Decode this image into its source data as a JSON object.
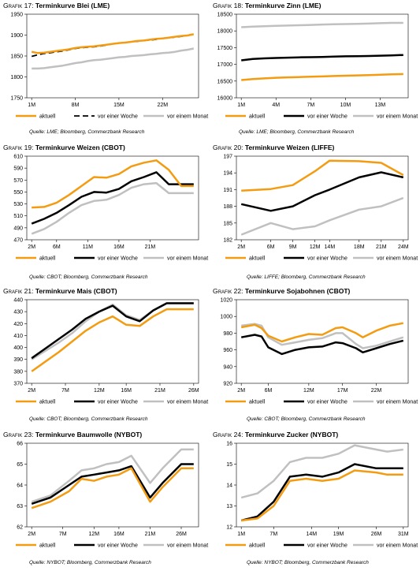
{
  "panels": [
    {
      "label": "Grafik 17:",
      "title": "Terminkurve Blei (LME)",
      "source": "Quelle: LME; Bloomberg, Commerzbank Research",
      "chart_data": {
        "type": "line",
        "x": [
          1,
          2,
          3,
          4,
          5,
          6,
          7,
          8,
          9,
          10,
          11,
          12,
          13,
          14,
          15,
          16,
          17,
          18,
          19,
          20,
          21,
          22,
          23,
          24,
          25,
          26,
          27
        ],
        "xticks": [
          1,
          8,
          15,
          22
        ],
        "xticklabels": [
          "1M",
          "8M",
          "15M",
          "22M"
        ],
        "ylim": [
          1750,
          1950
        ],
        "yticks": [
          1750,
          1800,
          1850,
          1900,
          1950
        ],
        "series": [
          {
            "name": "aktuell",
            "color": "#f39c12",
            "width": 2.5,
            "dash": "",
            "values": [
              1860,
              1857,
              1858,
              1860,
              1862,
              1864,
              1866,
              1869,
              1871,
              1872,
              1873,
              1875,
              1877,
              1879,
              1881,
              1882,
              1884,
              1886,
              1887,
              1889,
              1891,
              1892,
              1894,
              1896,
              1898,
              1899,
              1902
            ]
          },
          {
            "name": "vor einer Woche",
            "color": "#000000",
            "width": 1.8,
            "dash": "7,4",
            "values": [
              1849,
              1853,
              1856,
              1858,
              1860,
              1862,
              1865,
              1868,
              1870,
              1871,
              1872,
              1874,
              1876,
              1879,
              1881,
              1882,
              1884,
              1885,
              1887,
              1888,
              1890,
              1892,
              1894,
              1895,
              1897,
              1899,
              1903
            ]
          },
          {
            "name": "vor einem Monat",
            "color": "#c0c0c0",
            "width": 2.5,
            "dash": "",
            "values": [
              1820,
              1820,
              1821,
              1823,
              1825,
              1827,
              1830,
              1833,
              1835,
              1838,
              1840,
              1841,
              1843,
              1845,
              1847,
              1848,
              1850,
              1851,
              1852,
              1854,
              1855,
              1857,
              1858,
              1860,
              1863,
              1865,
              1868
            ]
          }
        ]
      }
    },
    {
      "label": "Grafik 18:",
      "title": "Terminkurve Zinn (LME)",
      "source": "Quelle: LME; Bloomberg, Commerzbank Research",
      "chart_data": {
        "type": "line",
        "x": [
          1,
          2,
          3,
          4,
          5,
          6,
          7,
          8,
          9,
          10,
          11,
          12,
          13,
          14,
          15
        ],
        "xticks": [
          1,
          4,
          7,
          10,
          13
        ],
        "xticklabels": [
          "1M",
          "4M",
          "7M",
          "10M",
          "13M"
        ],
        "ylim": [
          16000,
          18500
        ],
        "yticks": [
          16000,
          16500,
          17000,
          17500,
          18000,
          18500
        ],
        "series": [
          {
            "name": "aktuell",
            "color": "#f39c12",
            "width": 2.5,
            "dash": "",
            "values": [
              16530,
              16560,
              16580,
              16600,
              16610,
              16620,
              16630,
              16640,
              16650,
              16660,
              16670,
              16680,
              16690,
              16700,
              16710
            ]
          },
          {
            "name": "vor einer Woche",
            "color": "#000000",
            "width": 2.5,
            "dash": "",
            "values": [
              17120,
              17160,
              17180,
              17190,
              17200,
              17210,
              17215,
              17220,
              17230,
              17240,
              17245,
              17250,
              17260,
              17270,
              17280
            ]
          },
          {
            "name": "vor einem Monat",
            "color": "#c0c0c0",
            "width": 2.5,
            "dash": "",
            "values": [
              18110,
              18130,
              18140,
              18150,
              18160,
              18170,
              18180,
              18190,
              18200,
              18205,
              18210,
              18220,
              18230,
              18240,
              18240
            ]
          }
        ]
      }
    },
    {
      "label": "Grafik 19:",
      "title": "Terminkurve Weizen (CBOT)",
      "source": "Quelle: CBOT; Bloomberg, Commerzbank Research",
      "chart_data": {
        "type": "line",
        "x": [
          2,
          4,
          6,
          8,
          10,
          12,
          14,
          16,
          18,
          20,
          22,
          24,
          26,
          28
        ],
        "xticks": [
          2,
          6,
          11,
          16,
          21
        ],
        "xticklabels": [
          "2M",
          "6M",
          "11M",
          "16M",
          "21M"
        ],
        "ylim": [
          470,
          610
        ],
        "yticks": [
          470,
          490,
          510,
          530,
          550,
          570,
          590,
          610
        ],
        "series": [
          {
            "name": "aktuell",
            "color": "#f39c12",
            "width": 2.5,
            "dash": "",
            "values": [
              524,
              525,
              532,
              545,
              560,
              575,
              574,
              580,
              593,
              599,
              603,
              587,
              560,
              560
            ]
          },
          {
            "name": "vor einer Woche",
            "color": "#000000",
            "width": 2.5,
            "dash": "",
            "values": [
              497,
              505,
              515,
              528,
              542,
              550,
              549,
              555,
              568,
              575,
              583,
              563,
              563,
              563
            ]
          },
          {
            "name": "vor einem Monat",
            "color": "#c0c0c0",
            "width": 2.5,
            "dash": "",
            "values": [
              480,
              488,
              500,
              515,
              528,
              535,
              537,
              545,
              557,
              563,
              565,
              548,
              548,
              548
            ]
          }
        ]
      }
    },
    {
      "label": "Grafik 20:",
      "title": "Terminkurve Weizen (LIFFE)",
      "source": "Quelle: LIFFE; Bloomberg, Commerzbank Research",
      "chart_data": {
        "type": "line",
        "x": [
          2,
          6,
          9,
          12,
          14,
          18,
          21,
          24
        ],
        "xticks": [
          2,
          6,
          9,
          12,
          14,
          18,
          21,
          24
        ],
        "xticklabels": [
          "2M",
          "6M",
          "9M",
          "12M",
          "14M",
          "18M",
          "21M",
          "24M"
        ],
        "ylim": [
          182,
          197
        ],
        "yticks": [
          182,
          185,
          188,
          191,
          194,
          197
        ],
        "series": [
          {
            "name": "aktuell",
            "color": "#f39c12",
            "width": 2.5,
            "dash": "",
            "values": [
              190.8,
              191.1,
              191.8,
              194.3,
              196.2,
              196.1,
              195.8,
              193.6
            ]
          },
          {
            "name": "vor einer Woche",
            "color": "#000000",
            "width": 2.5,
            "dash": "",
            "values": [
              188.4,
              187.2,
              188.0,
              190.0,
              191.0,
              193.2,
              194.1,
              193.2
            ]
          },
          {
            "name": "vor einem Monat",
            "color": "#c0c0c0",
            "width": 2.5,
            "dash": "",
            "values": [
              182.9,
              185.0,
              183.9,
              184.4,
              185.5,
              187.4,
              188.0,
              189.5
            ]
          }
        ]
      }
    },
    {
      "label": "Grafik 21:",
      "title": "Terminkurve Mais (CBOT)",
      "source": "Quelle: CBOT; Bloomberg, Commerzbank Research",
      "chart_data": {
        "type": "line",
        "x": [
          2,
          4,
          6,
          8,
          10,
          12,
          14,
          16,
          18,
          20,
          22,
          24,
          26
        ],
        "xticks": [
          2,
          7,
          12,
          16,
          21,
          26
        ],
        "xticklabels": [
          "2M",
          "7M",
          "12M",
          "16M",
          "21M",
          "26M"
        ],
        "ylim": [
          370,
          440
        ],
        "yticks": [
          370,
          380,
          390,
          400,
          410,
          420,
          430,
          440
        ],
        "series": [
          {
            "name": "aktuell",
            "color": "#f39c12",
            "width": 2.5,
            "dash": "",
            "values": [
              380,
              388,
              396,
              405,
              414,
              421,
              426,
              419,
              418,
              426,
              432,
              432,
              432
            ]
          },
          {
            "name": "vor einer Woche",
            "color": "#000000",
            "width": 2.5,
            "dash": "",
            "values": [
              391,
              399,
              407,
              415,
              424,
              430,
              435,
              426,
              422,
              431,
              437,
              437,
              437
            ]
          },
          {
            "name": "vor einem Monat",
            "color": "#c0c0c0",
            "width": 2.5,
            "dash": "",
            "values": [
              390,
              397,
              404,
              412,
              422,
              430,
              436,
              427,
              423,
              431,
              437,
              437,
              437
            ]
          }
        ]
      }
    },
    {
      "label": "Grafik 22:",
      "title": "Terminkurve Sojabohnen (CBOT)",
      "source": "Quelle: CBOT; Bloomberg, Commerzbank Research",
      "chart_data": {
        "type": "line",
        "x": [
          2,
          4,
          5,
          6,
          8,
          10,
          12,
          14,
          16,
          17,
          19,
          20,
          22,
          24,
          26
        ],
        "xticks": [
          2,
          6,
          12,
          17,
          22
        ],
        "xticklabels": [
          "2M",
          "6M",
          "12M",
          "17M",
          "22M"
        ],
        "ylim": [
          920,
          1020
        ],
        "yticks": [
          920,
          940,
          960,
          980,
          1000,
          1020
        ],
        "series": [
          {
            "name": "aktuell",
            "color": "#f39c12",
            "width": 2.5,
            "dash": "",
            "values": [
              987,
              990,
              986,
              977,
              970,
              975,
              979,
              978,
              986,
              987,
              980,
              975,
              983,
              989,
              992
            ]
          },
          {
            "name": "vor einer Woche",
            "color": "#000000",
            "width": 2.5,
            "dash": "",
            "values": [
              975,
              978,
              976,
              963,
              955,
              960,
              963,
              964,
              969,
              968,
              962,
              957,
              962,
              967,
              971
            ]
          },
          {
            "name": "vor einem Monat",
            "color": "#c0c0c0",
            "width": 2.5,
            "dash": "",
            "values": [
              989,
              991,
              989,
              975,
              966,
              969,
              972,
              974,
              980,
              980,
              967,
              962,
              965,
              970,
              975
            ]
          }
        ]
      }
    },
    {
      "label": "Grafik 23:",
      "title": "Terminkurve Baumwolle (NYBOT)",
      "source": "Quelle: NYBOT; Bloomberg, Commerzbank Research",
      "chart_data": {
        "type": "line",
        "x": [
          2,
          5,
          8,
          10,
          12,
          14,
          16,
          18,
          21,
          23,
          26,
          28
        ],
        "xticks": [
          2,
          7,
          12,
          16,
          21,
          26
        ],
        "xticklabels": [
          "2M",
          "7M",
          "12M",
          "16M",
          "21M",
          "26M"
        ],
        "ylim": [
          62,
          66
        ],
        "yticks": [
          62,
          63,
          64,
          65,
          66
        ],
        "series": [
          {
            "name": "aktuell",
            "color": "#f39c12",
            "width": 2.5,
            "dash": "",
            "values": [
              62.9,
              63.2,
              63.7,
              64.3,
              64.2,
              64.4,
              64.5,
              64.8,
              63.2,
              63.9,
              64.8,
              64.8
            ]
          },
          {
            "name": "vor einer Woche",
            "color": "#000000",
            "width": 2.5,
            "dash": "",
            "values": [
              63.1,
              63.4,
              64.0,
              64.4,
              64.5,
              64.6,
              64.7,
              64.9,
              63.4,
              64.1,
              65.0,
              65.0
            ]
          },
          {
            "name": "vor einem Monat",
            "color": "#c0c0c0",
            "width": 2.5,
            "dash": "",
            "values": [
              63.2,
              63.5,
              64.2,
              64.7,
              64.8,
              65.0,
              65.1,
              65.4,
              64.1,
              64.8,
              65.7,
              65.7
            ]
          }
        ]
      }
    },
    {
      "label": "Grafik 24:",
      "title": "Terminkurve Zucker (NYBOT)",
      "source": "Quelle: NYBOT; Bloomberg, Commerzbank Research",
      "chart_data": {
        "type": "line",
        "x": [
          1,
          4,
          7,
          10,
          13,
          16,
          19,
          22,
          26,
          28,
          31
        ],
        "xticks": [
          1,
          7,
          14,
          19,
          26,
          31
        ],
        "xticklabels": [
          "1M",
          "7M",
          "14M",
          "19M",
          "26M",
          "31M"
        ],
        "ylim": [
          12,
          16
        ],
        "yticks": [
          12,
          13,
          14,
          15,
          16
        ],
        "series": [
          {
            "name": "aktuell",
            "color": "#f39c12",
            "width": 2.5,
            "dash": "",
            "values": [
              12.3,
              12.4,
              13.0,
              14.2,
              14.3,
              14.2,
              14.3,
              14.7,
              14.6,
              14.5,
              14.5
            ]
          },
          {
            "name": "vor einer Woche",
            "color": "#000000",
            "width": 2.5,
            "dash": "",
            "values": [
              12.3,
              12.5,
              13.2,
              14.4,
              14.5,
              14.4,
              14.6,
              15.0,
              14.8,
              14.8,
              14.8
            ]
          },
          {
            "name": "vor einem Monat",
            "color": "#c0c0c0",
            "width": 2.5,
            "dash": "",
            "values": [
              13.4,
              13.6,
              14.2,
              15.1,
              15.3,
              15.3,
              15.5,
              15.9,
              15.7,
              15.6,
              15.7
            ]
          }
        ]
      }
    }
  ]
}
